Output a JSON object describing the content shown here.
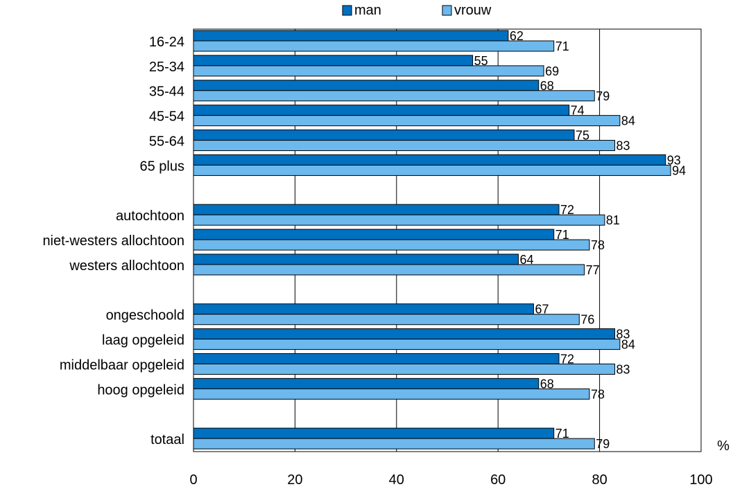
{
  "chart_data": {
    "type": "bar",
    "orientation": "horizontal",
    "title": "",
    "xlabel": "",
    "ylabel": "",
    "unit_label": "%",
    "xlim": [
      0,
      100
    ],
    "x_ticks": [
      0,
      20,
      40,
      60,
      80,
      100
    ],
    "grid": "vertical lines at 20, 40, 60, 80",
    "legend": {
      "placement": "top-center"
    },
    "categories": [
      "16-24",
      "25-34",
      "35-44",
      "45-54",
      "55-64",
      "65 plus",
      "",
      "autochtoon",
      "niet-westers allochtoon",
      "westers allochtoon",
      "",
      "ongeschoold",
      "laag opgeleid",
      "middelbaar opgeleid",
      "hoog opgeleid",
      "",
      "totaal"
    ],
    "series": [
      {
        "name": "man",
        "color": "#0070C0",
        "values": [
          62,
          55,
          68,
          74,
          75,
          93,
          null,
          72,
          71,
          64,
          null,
          67,
          83,
          72,
          68,
          null,
          71
        ]
      },
      {
        "name": "vrouw",
        "color": "#6DB8EC",
        "values": [
          71,
          69,
          79,
          84,
          83,
          94,
          null,
          81,
          78,
          77,
          null,
          76,
          84,
          83,
          78,
          null,
          79
        ]
      }
    ]
  }
}
